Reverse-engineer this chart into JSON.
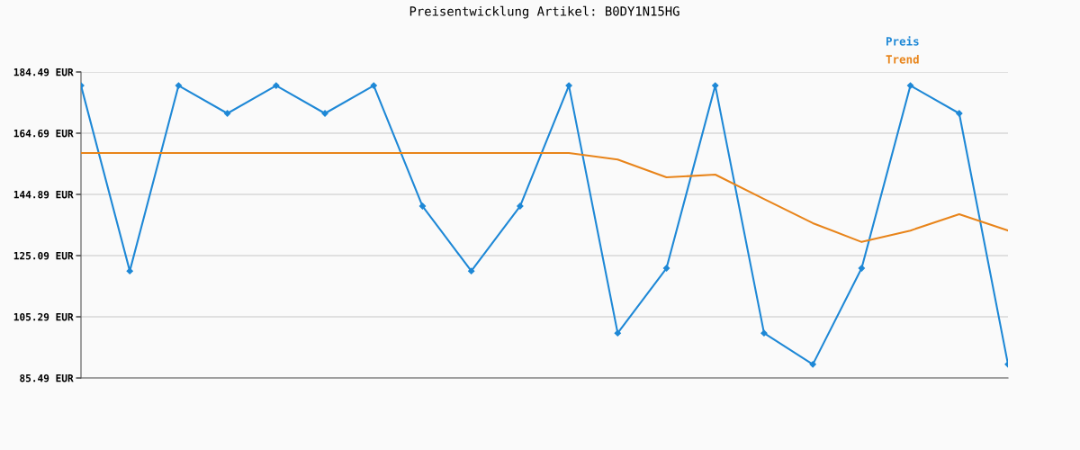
{
  "chart_data": {
    "type": "line",
    "title": "Preisentwicklung Artikel: B0DY1N15HG",
    "categories": [
      null,
      null,
      null,
      null,
      null,
      null,
      null,
      null,
      null,
      null,
      null,
      null,
      null,
      null,
      null,
      null,
      null,
      null,
      null,
      null
    ],
    "series": [
      {
        "name": "Preis",
        "color": "#1e88d6",
        "marker": "diamond",
        "values": [
          180.1,
          120.1,
          180.1,
          171.1,
          180.1,
          171.1,
          180.1,
          141.1,
          120.1,
          141.1,
          180.1,
          100.0,
          121.0,
          180.1,
          100.0,
          89.9,
          121.0,
          180.1,
          171.1,
          89.9
        ]
      },
      {
        "name": "Trend",
        "color": "#e8841a",
        "marker": "none",
        "values": [
          158.3,
          158.3,
          158.3,
          158.3,
          158.3,
          158.3,
          158.3,
          158.3,
          158.3,
          158.3,
          158.3,
          156.2,
          150.4,
          151.3,
          143.4,
          135.6,
          129.5,
          133.2,
          138.5,
          133.2
        ]
      }
    ],
    "ylim": [
      85.49,
      184.49
    ],
    "yticks": [
      {
        "value": 85.49,
        "label": "85.49 EUR"
      },
      {
        "value": 105.29,
        "label": "105.29 EUR"
      },
      {
        "value": 125.09,
        "label": "125.09 EUR"
      },
      {
        "value": 144.89,
        "label": "144.89 EUR"
      },
      {
        "value": 164.69,
        "label": "164.69 EUR"
      },
      {
        "value": 184.49,
        "label": "184.49 EUR"
      }
    ],
    "grid": "y",
    "legend": "top right"
  }
}
